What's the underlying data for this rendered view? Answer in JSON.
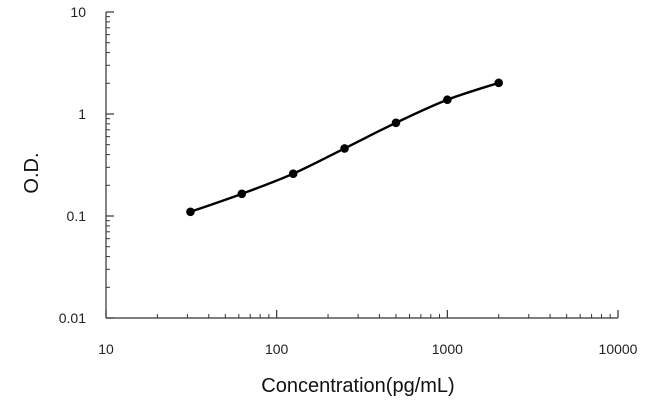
{
  "chart_data": {
    "type": "scatter",
    "title": "",
    "xlabel": "Concentration(pg/mL)",
    "ylabel": "O.D.",
    "xscale": "log",
    "yscale": "log",
    "xlim": [
      10,
      10000
    ],
    "ylim": [
      0.01,
      10
    ],
    "x_ticks": [
      "10",
      "100",
      "1000",
      "10000"
    ],
    "y_ticks": [
      "0.01",
      "0.1",
      "1",
      "10"
    ],
    "grid": false,
    "legend": "none",
    "series": [
      {
        "x": [
          31.25,
          62.5,
          125,
          250,
          500,
          1000,
          2000
        ],
        "y": [
          0.11,
          0.165,
          0.26,
          0.46,
          0.82,
          1.38,
          2.02
        ],
        "color": "#000000",
        "marker": "circle",
        "line": "smooth"
      }
    ]
  }
}
